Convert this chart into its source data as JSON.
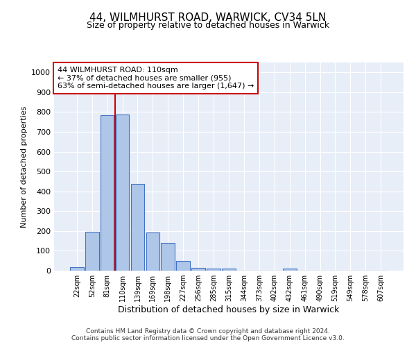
{
  "title1": "44, WILMHURST ROAD, WARWICK, CV34 5LN",
  "title2": "Size of property relative to detached houses in Warwick",
  "xlabel": "Distribution of detached houses by size in Warwick",
  "ylabel": "Number of detached properties",
  "bar_labels": [
    "22sqm",
    "52sqm",
    "81sqm",
    "110sqm",
    "139sqm",
    "169sqm",
    "198sqm",
    "227sqm",
    "256sqm",
    "285sqm",
    "315sqm",
    "344sqm",
    "373sqm",
    "402sqm",
    "432sqm",
    "461sqm",
    "490sqm",
    "519sqm",
    "549sqm",
    "578sqm",
    "607sqm"
  ],
  "bar_values": [
    18,
    195,
    785,
    787,
    438,
    193,
    140,
    50,
    15,
    12,
    12,
    0,
    0,
    0,
    10,
    0,
    0,
    0,
    0,
    0,
    0
  ],
  "bar_color": "#aec6e8",
  "bar_edge_color": "#4472c4",
  "vline_x_index": 3,
  "vline_color": "#cc0000",
  "ylim": [
    0,
    1050
  ],
  "yticks": [
    0,
    100,
    200,
    300,
    400,
    500,
    600,
    700,
    800,
    900,
    1000
  ],
  "annotation_text": "44 WILMHURST ROAD: 110sqm\n← 37% of detached houses are smaller (955)\n63% of semi-detached houses are larger (1,647) →",
  "footer": "Contains HM Land Registry data © Crown copyright and database right 2024.\nContains public sector information licensed under the Open Government Licence v3.0.",
  "bg_color": "#e8eef8",
  "title1_fontsize": 11,
  "title2_fontsize": 9,
  "ylabel_fontsize": 8,
  "xlabel_fontsize": 9,
  "tick_fontsize": 8,
  "xtick_fontsize": 7,
  "footer_fontsize": 6.5,
  "ann_fontsize": 8
}
